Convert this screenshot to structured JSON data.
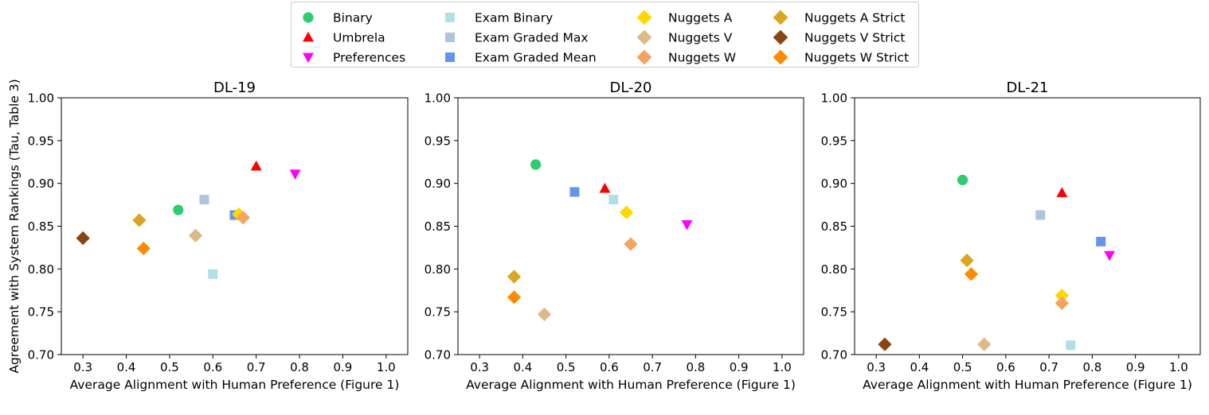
{
  "legend": {
    "placement": "top-center",
    "entries": [
      {
        "name": "Binary",
        "marker": "circle",
        "color": "#2ecc71"
      },
      {
        "name": "Umbrela",
        "marker": "triangle-up",
        "color": "#ff0000"
      },
      {
        "name": "Preferences",
        "marker": "triangle-down",
        "color": "#ff00ff"
      },
      {
        "name": "Exam Binary",
        "marker": "square",
        "color": "#b0e0e6"
      },
      {
        "name": "Exam Graded Max",
        "marker": "square",
        "color": "#b0c4de"
      },
      {
        "name": "Exam Graded Mean",
        "marker": "square",
        "color": "#6495ed"
      },
      {
        "name": "Nuggets A",
        "marker": "diamond",
        "color": "#ffd700"
      },
      {
        "name": "Nuggets V",
        "marker": "diamond",
        "color": "#deb887"
      },
      {
        "name": "Nuggets W",
        "marker": "diamond",
        "color": "#f4a460"
      },
      {
        "name": "Nuggets A Strict",
        "marker": "diamond",
        "color": "#daa520"
      },
      {
        "name": "Nuggets V Strict",
        "marker": "diamond",
        "color": "#8b4513"
      },
      {
        "name": "Nuggets W Strict",
        "marker": "diamond",
        "color": "#ff8c00"
      }
    ]
  },
  "chart_data": [
    {
      "type": "scatter",
      "title": "DL-19",
      "xlabel": "Average Alignment with Human Preference (Figure 1)",
      "ylabel": "Agreement with System Rankings (Tau, Table 3)",
      "xlim": [
        0.25,
        1.05
      ],
      "ylim": [
        0.7,
        1.0
      ],
      "xticks": [
        "0.3",
        "0.4",
        "0.5",
        "0.6",
        "0.7",
        "0.8",
        "0.9",
        "1.0"
      ],
      "yticks": [
        "0.70",
        "0.75",
        "0.80",
        "0.85",
        "0.90",
        "0.95",
        "1.00"
      ],
      "grid": false,
      "points": [
        {
          "series": "Binary",
          "x": 0.52,
          "y": 0.869
        },
        {
          "series": "Umbrela",
          "x": 0.7,
          "y": 0.92
        },
        {
          "series": "Preferences",
          "x": 0.79,
          "y": 0.911
        },
        {
          "series": "Exam Binary",
          "x": 0.6,
          "y": 0.794
        },
        {
          "series": "Exam Graded Max",
          "x": 0.58,
          "y": 0.881
        },
        {
          "series": "Exam Graded Mean",
          "x": 0.65,
          "y": 0.863
        },
        {
          "series": "Nuggets A",
          "x": 0.66,
          "y": 0.864
        },
        {
          "series": "Nuggets V",
          "x": 0.56,
          "y": 0.839
        },
        {
          "series": "Nuggets W",
          "x": 0.67,
          "y": 0.86
        },
        {
          "series": "Nuggets A Strict",
          "x": 0.43,
          "y": 0.857
        },
        {
          "series": "Nuggets V Strict",
          "x": 0.3,
          "y": 0.836
        },
        {
          "series": "Nuggets W Strict",
          "x": 0.44,
          "y": 0.824
        }
      ]
    },
    {
      "type": "scatter",
      "title": "DL-20",
      "xlabel": "Average Alignment with Human Preference (Figure 1)",
      "xlim": [
        0.25,
        1.05
      ],
      "ylim": [
        0.7,
        1.0
      ],
      "xticks": [
        "0.3",
        "0.4",
        "0.5",
        "0.6",
        "0.7",
        "0.8",
        "0.9",
        "1.0"
      ],
      "yticks": [
        "0.70",
        "0.75",
        "0.80",
        "0.85",
        "0.90",
        "0.95",
        "1.00"
      ],
      "grid": false,
      "points": [
        {
          "series": "Binary",
          "x": 0.43,
          "y": 0.922
        },
        {
          "series": "Umbrela",
          "x": 0.59,
          "y": 0.894
        },
        {
          "series": "Preferences",
          "x": 0.78,
          "y": 0.852
        },
        {
          "series": "Exam Binary",
          "x": 0.61,
          "y": 0.881
        },
        {
          "series": "Exam Graded Mean",
          "x": 0.52,
          "y": 0.89
        },
        {
          "series": "Nuggets A",
          "x": 0.64,
          "y": 0.866
        },
        {
          "series": "Nuggets V",
          "x": 0.45,
          "y": 0.747
        },
        {
          "series": "Nuggets W",
          "x": 0.65,
          "y": 0.829
        },
        {
          "series": "Nuggets A Strict",
          "x": 0.38,
          "y": 0.791
        },
        {
          "series": "Nuggets W Strict",
          "x": 0.38,
          "y": 0.767
        }
      ]
    },
    {
      "type": "scatter",
      "title": "DL-21",
      "xlabel": "Average Alignment with Human Preference (Figure 1)",
      "xlim": [
        0.25,
        1.05
      ],
      "ylim": [
        0.7,
        1.0
      ],
      "xticks": [
        "0.3",
        "0.4",
        "0.5",
        "0.6",
        "0.7",
        "0.8",
        "0.9",
        "1.0"
      ],
      "yticks": [
        "0.70",
        "0.75",
        "0.80",
        "0.85",
        "0.90",
        "0.95",
        "1.00"
      ],
      "grid": false,
      "points": [
        {
          "series": "Binary",
          "x": 0.5,
          "y": 0.904
        },
        {
          "series": "Umbrela",
          "x": 0.73,
          "y": 0.889
        },
        {
          "series": "Preferences",
          "x": 0.84,
          "y": 0.816
        },
        {
          "series": "Exam Binary",
          "x": 0.75,
          "y": 0.711
        },
        {
          "series": "Exam Graded Max",
          "x": 0.68,
          "y": 0.863
        },
        {
          "series": "Exam Graded Mean",
          "x": 0.82,
          "y": 0.832
        },
        {
          "series": "Nuggets A",
          "x": 0.73,
          "y": 0.769
        },
        {
          "series": "Nuggets V",
          "x": 0.55,
          "y": 0.712
        },
        {
          "series": "Nuggets W",
          "x": 0.73,
          "y": 0.76
        },
        {
          "series": "Nuggets A Strict",
          "x": 0.51,
          "y": 0.81
        },
        {
          "series": "Nuggets V Strict",
          "x": 0.32,
          "y": 0.712
        },
        {
          "series": "Nuggets W Strict",
          "x": 0.52,
          "y": 0.794
        }
      ]
    }
  ]
}
